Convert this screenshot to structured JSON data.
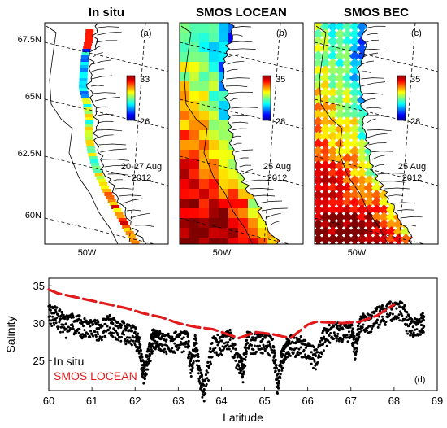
{
  "maps": [
    {
      "id": "a",
      "title": "In situ",
      "panel_label": "(a)",
      "date_lines": [
        "20-27 Aug",
        "2012"
      ],
      "colorbar": {
        "min": 26,
        "max": 33,
        "min_label": "26",
        "max_label": "33"
      }
    },
    {
      "id": "b",
      "title": "SMOS LOCEAN",
      "panel_label": "(b)",
      "date_lines": [
        "25 Aug",
        "2012"
      ],
      "colorbar": {
        "min": 28,
        "max": 35,
        "min_label": "28",
        "max_label": "35"
      }
    },
    {
      "id": "c",
      "title": "SMOS BEC",
      "panel_label": "(c)",
      "date_lines": [
        "25 Aug",
        "2012"
      ],
      "colorbar": {
        "min": 28,
        "max": 35,
        "min_label": "28",
        "max_label": "35"
      }
    }
  ],
  "map_lat_ticks": [
    "67.5N",
    "65N",
    "62.5N",
    "60N"
  ],
  "map_lon_tick": "50W",
  "colors": {
    "in_situ": "#000000",
    "smos": "#e31a1c",
    "land": "#ffffff",
    "coast": "#000000"
  },
  "chart_data": {
    "type": "scatter",
    "panel_label": "(d)",
    "xlabel": "Latitude",
    "ylabel": "Salinity",
    "xlim": [
      60,
      69
    ],
    "ylim": [
      21,
      36
    ],
    "x_ticks": [
      60,
      61,
      62,
      63,
      64,
      65,
      66,
      67,
      68,
      69
    ],
    "y_ticks": [
      25,
      30,
      35
    ],
    "series": [
      {
        "name": "In situ",
        "color": "#000000",
        "style": "dots",
        "x": [
          60.0,
          60.2,
          60.4,
          60.6,
          60.8,
          61.0,
          61.2,
          61.4,
          61.6,
          61.8,
          62.0,
          62.1,
          62.2,
          62.3,
          62.4,
          62.5,
          62.6,
          62.8,
          63.0,
          63.2,
          63.3,
          63.4,
          63.5,
          63.6,
          63.8,
          64.0,
          64.2,
          64.4,
          64.5,
          64.6,
          64.8,
          65.0,
          65.2,
          65.3,
          65.4,
          65.5,
          65.6,
          65.8,
          66.0,
          66.2,
          66.4,
          66.6,
          66.8,
          67.0,
          67.1,
          67.2,
          67.4,
          67.6,
          67.8,
          68.0,
          68.2,
          68.4,
          68.6,
          68.7
        ],
        "y": [
          32.0,
          31.5,
          30.5,
          30.8,
          30.2,
          30.0,
          29.8,
          30.5,
          30.0,
          29.5,
          29.0,
          27.5,
          24.0,
          26.0,
          28.5,
          28.8,
          28.2,
          28.0,
          28.5,
          28.5,
          25.0,
          28.0,
          23.5,
          21.5,
          28.0,
          28.0,
          28.6,
          25.5,
          24.5,
          28.5,
          28.0,
          28.2,
          27.5,
          22.5,
          26.0,
          27.5,
          27.8,
          28.0,
          27.0,
          26.0,
          29.0,
          30.0,
          29.5,
          30.0,
          27.0,
          30.5,
          30.8,
          31.5,
          32.0,
          32.5,
          32.3,
          30.0,
          30.5,
          31.0
        ]
      },
      {
        "name": "SMOS LOCEAN",
        "color": "#e31a1c",
        "style": "dashed-line",
        "x": [
          60.0,
          60.2,
          60.6,
          61.0,
          61.4,
          61.8,
          62.2,
          62.6,
          63.0,
          63.4,
          63.8,
          64.0,
          64.4,
          64.8,
          65.2,
          65.6,
          66.0,
          66.2,
          66.8,
          67.2,
          67.6,
          68.0
        ],
        "y": [
          34.5,
          34.0,
          33.5,
          33.0,
          32.5,
          32.0,
          31.3,
          30.8,
          30.0,
          29.5,
          29.2,
          28.8,
          28.0,
          28.8,
          28.5,
          28.0,
          29.8,
          30.2,
          30.0,
          30.2,
          31.0,
          32.5
        ]
      }
    ],
    "legend": {
      "placement": "bottom-left"
    }
  }
}
